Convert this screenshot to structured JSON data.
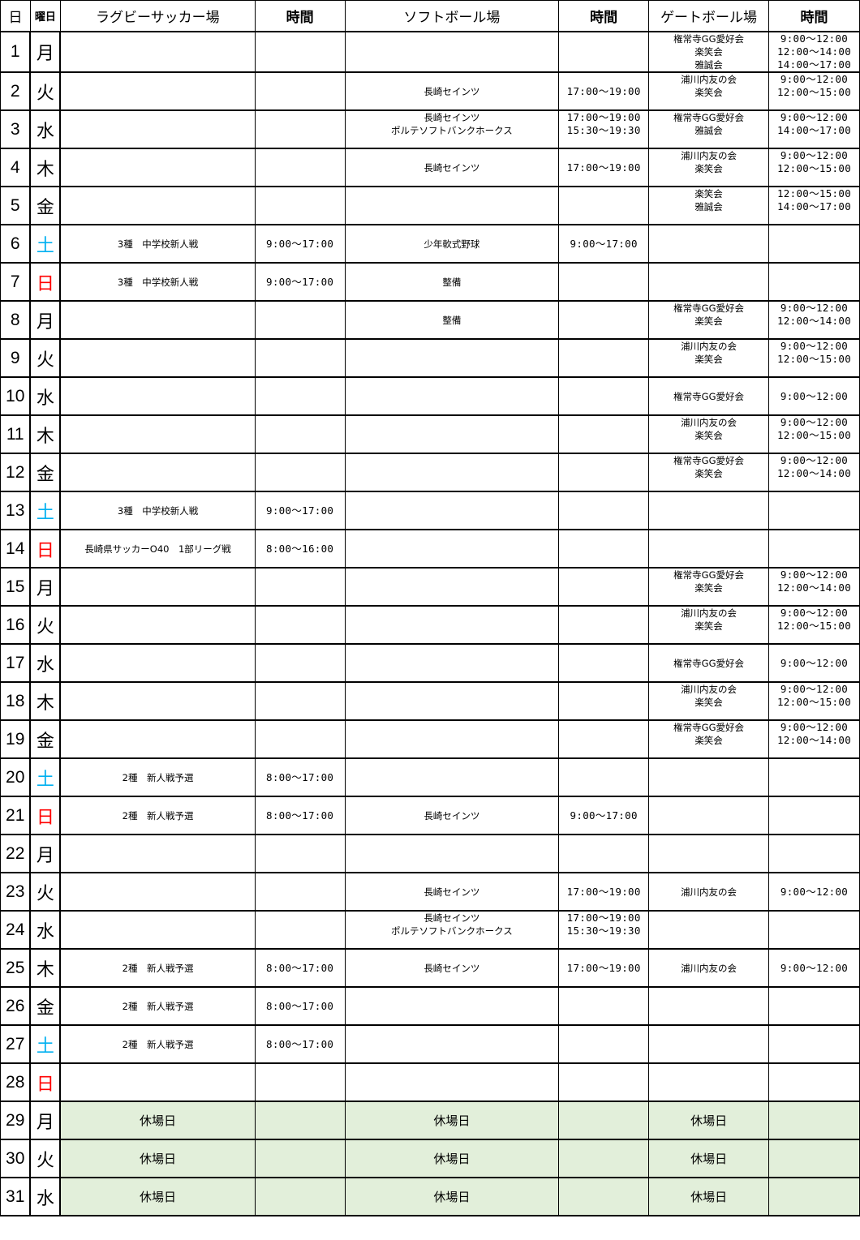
{
  "header": {
    "day": "日",
    "weekday": "曜日",
    "rugby": "ラグビーサッカー場",
    "rugby_time": "時間",
    "softball": "ソフトボール場",
    "softball_time": "時間",
    "gate": "ゲートボール場",
    "gate_time": "時間"
  },
  "colors": {
    "saturday": "#00b0f0",
    "sunday": "#ff0000",
    "closed_fill": "#e2efda"
  },
  "rows": [
    {
      "day": "1",
      "wd": "月",
      "r": [],
      "rt": [],
      "s": [],
      "st": [],
      "g": [
        "権常寺GG愛好会",
        "楽笑会",
        "雅誠会"
      ],
      "gt": [
        "9:00～12:00",
        "12:00～14:00",
        "14:00～17:00"
      ]
    },
    {
      "day": "2",
      "wd": "火",
      "r": [],
      "rt": [],
      "s": [
        "長崎セインツ"
      ],
      "st": [
        "17:00～19:00"
      ],
      "g": [
        "浦川内友の会",
        "楽笑会"
      ],
      "gt": [
        "9:00～12:00",
        "12:00～15:00"
      ]
    },
    {
      "day": "3",
      "wd": "水",
      "r": [],
      "rt": [],
      "s": [
        "長崎セインツ",
        "ポルテソフトバンクホークス"
      ],
      "st": [
        "17:00～19:00",
        "15:30～19:30"
      ],
      "g": [
        "権常寺GG愛好会",
        "雅誠会"
      ],
      "gt": [
        "9:00～12:00",
        "14:00～17:00"
      ]
    },
    {
      "day": "4",
      "wd": "木",
      "r": [],
      "rt": [],
      "s": [
        "長崎セインツ"
      ],
      "st": [
        "17:00～19:00"
      ],
      "g": [
        "浦川内友の会",
        "楽笑会"
      ],
      "gt": [
        "9:00～12:00",
        "12:00～15:00"
      ]
    },
    {
      "day": "5",
      "wd": "金",
      "r": [],
      "rt": [],
      "s": [],
      "st": [],
      "g": [
        "楽笑会",
        "雅誠会"
      ],
      "gt": [
        "12:00～15:00",
        "14:00～17:00"
      ]
    },
    {
      "day": "6",
      "wd": "土",
      "r": [
        "3種　中学校新人戦"
      ],
      "rt": [
        "9:00～17:00"
      ],
      "s": [
        "少年軟式野球"
      ],
      "st": [
        "9:00～17:00"
      ],
      "g": [],
      "gt": []
    },
    {
      "day": "7",
      "wd": "日",
      "r": [
        "3種　中学校新人戦"
      ],
      "rt": [
        "9:00～17:00"
      ],
      "s": [
        "整備"
      ],
      "st": [],
      "g": [],
      "gt": []
    },
    {
      "day": "8",
      "wd": "月",
      "r": [],
      "rt": [],
      "s": [
        "整備"
      ],
      "st": [],
      "g": [
        "権常寺GG愛好会",
        "楽笑会"
      ],
      "gt": [
        "9:00～12:00",
        "12:00～14:00"
      ]
    },
    {
      "day": "9",
      "wd": "火",
      "r": [],
      "rt": [],
      "s": [],
      "st": [],
      "g": [
        "浦川内友の会",
        "楽笑会"
      ],
      "gt": [
        "9:00～12:00",
        "12:00～15:00"
      ]
    },
    {
      "day": "10",
      "wd": "水",
      "r": [],
      "rt": [],
      "s": [],
      "st": [],
      "g": [
        "権常寺GG愛好会"
      ],
      "gt": [
        "9:00～12:00"
      ]
    },
    {
      "day": "11",
      "wd": "木",
      "r": [],
      "rt": [],
      "s": [],
      "st": [],
      "g": [
        "浦川内友の会",
        "楽笑会"
      ],
      "gt": [
        "9:00～12:00",
        "12:00～15:00"
      ]
    },
    {
      "day": "12",
      "wd": "金",
      "r": [],
      "rt": [],
      "s": [],
      "st": [],
      "g": [
        "権常寺GG愛好会",
        "楽笑会"
      ],
      "gt": [
        "9:00～12:00",
        "12:00～14:00"
      ]
    },
    {
      "day": "13",
      "wd": "土",
      "r": [
        "3種　中学校新人戦"
      ],
      "rt": [
        "9:00～17:00"
      ],
      "s": [],
      "st": [],
      "g": [],
      "gt": []
    },
    {
      "day": "14",
      "wd": "日",
      "r": [
        "長崎県サッカーO40　1部リーグ戦"
      ],
      "rt": [
        "8:00～16:00"
      ],
      "s": [],
      "st": [],
      "g": [],
      "gt": []
    },
    {
      "day": "15",
      "wd": "月",
      "r": [],
      "rt": [],
      "s": [],
      "st": [],
      "g": [
        "権常寺GG愛好会",
        "楽笑会"
      ],
      "gt": [
        "9:00～12:00",
        "12:00～14:00"
      ]
    },
    {
      "day": "16",
      "wd": "火",
      "r": [],
      "rt": [],
      "s": [],
      "st": [],
      "g": [
        "浦川内友の会",
        "楽笑会"
      ],
      "gt": [
        "9:00～12:00",
        "12:00～15:00"
      ]
    },
    {
      "day": "17",
      "wd": "水",
      "r": [],
      "rt": [],
      "s": [],
      "st": [],
      "g": [
        "権常寺GG愛好会"
      ],
      "gt": [
        "9:00～12:00"
      ]
    },
    {
      "day": "18",
      "wd": "木",
      "r": [],
      "rt": [],
      "s": [],
      "st": [],
      "g": [
        "浦川内友の会",
        "楽笑会"
      ],
      "gt": [
        "9:00～12:00",
        "12:00～15:00"
      ]
    },
    {
      "day": "19",
      "wd": "金",
      "r": [],
      "rt": [],
      "s": [],
      "st": [],
      "g": [
        "権常寺GG愛好会",
        "楽笑会"
      ],
      "gt": [
        "9:00～12:00",
        "12:00～14:00"
      ]
    },
    {
      "day": "20",
      "wd": "土",
      "r": [
        "2種　新人戦予選"
      ],
      "rt": [
        "8:00～17:00"
      ],
      "s": [],
      "st": [],
      "g": [],
      "gt": []
    },
    {
      "day": "21",
      "wd": "日",
      "r": [
        "2種　新人戦予選"
      ],
      "rt": [
        "8:00～17:00"
      ],
      "s": [
        "長崎セインツ"
      ],
      "st": [
        "9:00～17:00"
      ],
      "g": [],
      "gt": []
    },
    {
      "day": "22",
      "wd": "月",
      "r": [],
      "rt": [],
      "s": [],
      "st": [],
      "g": [],
      "gt": []
    },
    {
      "day": "23",
      "wd": "火",
      "r": [],
      "rt": [],
      "s": [
        "長崎セインツ"
      ],
      "st": [
        "17:00～19:00"
      ],
      "g": [
        "浦川内友の会"
      ],
      "gt": [
        "9:00～12:00"
      ]
    },
    {
      "day": "24",
      "wd": "水",
      "r": [],
      "rt": [],
      "s": [
        "長崎セインツ",
        "ポルテソフトバンクホークス"
      ],
      "st": [
        "17:00～19:00",
        "15:30～19:30"
      ],
      "g": [],
      "gt": []
    },
    {
      "day": "25",
      "wd": "木",
      "r": [
        "2種　新人戦予選"
      ],
      "rt": [
        "8:00～17:00"
      ],
      "s": [
        "長崎セインツ"
      ],
      "st": [
        "17:00～19:00"
      ],
      "g": [
        "浦川内友の会"
      ],
      "gt": [
        "9:00～12:00"
      ]
    },
    {
      "day": "26",
      "wd": "金",
      "r": [
        "2種　新人戦予選"
      ],
      "rt": [
        "8:00～17:00"
      ],
      "s": [],
      "st": [],
      "g": [],
      "gt": []
    },
    {
      "day": "27",
      "wd": "土",
      "r": [
        "2種　新人戦予選"
      ],
      "rt": [
        "8:00～17:00"
      ],
      "s": [],
      "st": [],
      "g": [],
      "gt": []
    },
    {
      "day": "28",
      "wd": "日",
      "r": [],
      "rt": [],
      "s": [],
      "st": [],
      "g": [],
      "gt": []
    },
    {
      "day": "29",
      "wd": "月",
      "closed": true,
      "r": [
        "休場日"
      ],
      "rt": [],
      "s": [
        "休場日"
      ],
      "st": [],
      "g": [
        "休場日"
      ],
      "gt": []
    },
    {
      "day": "30",
      "wd": "火",
      "closed": true,
      "r": [
        "休場日"
      ],
      "rt": [],
      "s": [
        "休場日"
      ],
      "st": [],
      "g": [
        "休場日"
      ],
      "gt": []
    },
    {
      "day": "31",
      "wd": "水",
      "closed": true,
      "r": [
        "休場日"
      ],
      "rt": [],
      "s": [
        "休場日"
      ],
      "st": [],
      "g": [
        "休場日"
      ],
      "gt": []
    }
  ]
}
